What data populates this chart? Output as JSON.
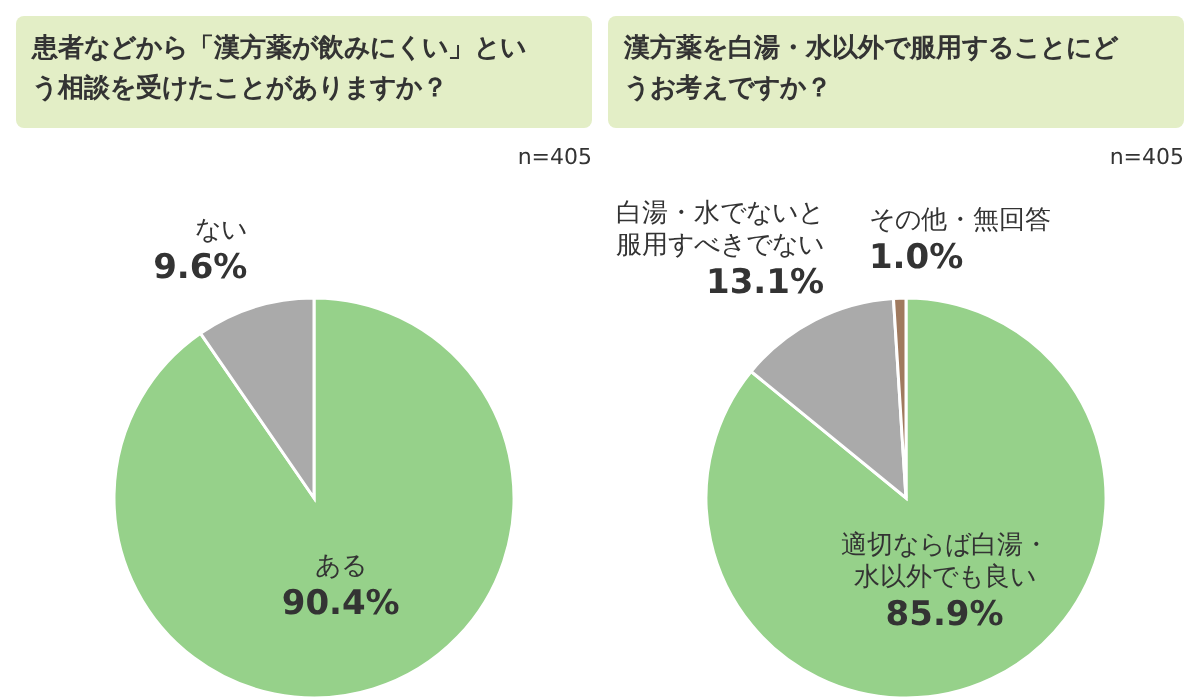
{
  "chart_data": [
    {
      "type": "pie",
      "title": "患者などから「漢方薬が飲みにくい」という相談を受けたことがありますか？",
      "annotations": [
        "n=405"
      ],
      "categories": [
        "ある",
        "ない"
      ],
      "values": [
        90.4,
        9.6
      ],
      "colors": [
        "#96d18a",
        "#aaaaaa"
      ],
      "value_labels": [
        "90.4%",
        "9.6%"
      ]
    },
    {
      "type": "pie",
      "title": "漢方薬を白湯・水以外で服用することにどうお考えですか？",
      "annotations": [
        "n=405"
      ],
      "categories": [
        "適切ならば白湯・水以外でも良い",
        "白湯・水でないと服用すべきでない",
        "その他・無回答"
      ],
      "values": [
        85.9,
        13.1,
        1.0
      ],
      "colors": [
        "#96d18a",
        "#aaaaaa",
        "#a07a5e"
      ],
      "value_labels": [
        "85.9%",
        "13.1%",
        "1.0%"
      ]
    }
  ]
}
